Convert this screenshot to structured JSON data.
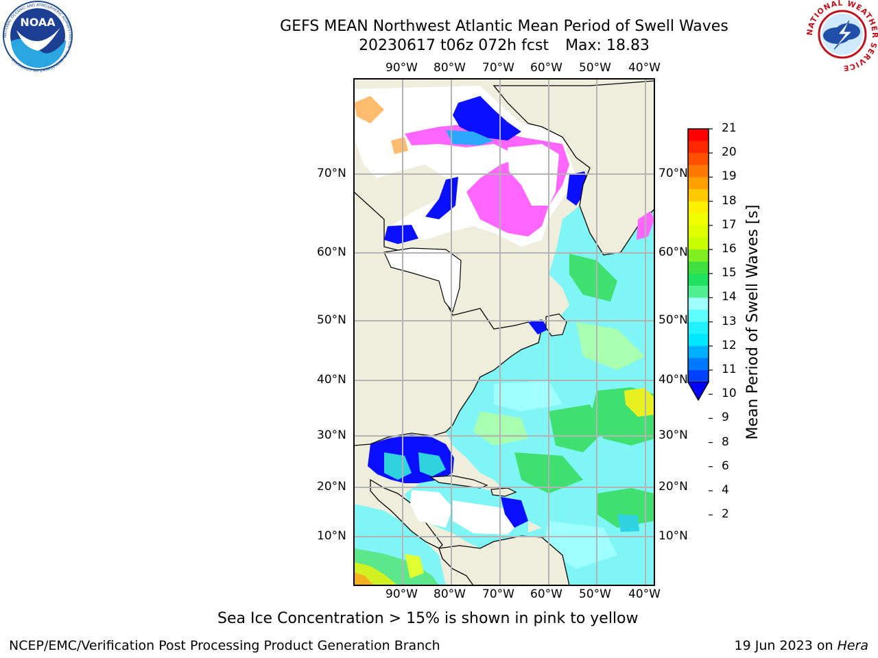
{
  "title": {
    "line1": "GEFS MEAN Northwest Atlantic Mean Period of Swell Waves",
    "line2_date": "20230617 t06z 072h fcst",
    "line2_max": "Max: 18.83"
  },
  "lon_ticks": [
    "90°W",
    "80°W",
    "70°W",
    "60°W",
    "50°W",
    "40°W"
  ],
  "lat_ticks": [
    "70°N",
    "60°N",
    "50°N",
    "40°N",
    "30°N",
    "20°N",
    "10°N"
  ],
  "colorbar": {
    "label": "Mean Period of Swell Waves [s]",
    "ticks": [
      "21",
      "20",
      "19",
      "18",
      "17",
      "16",
      "15",
      "14",
      "13",
      "12",
      "11",
      "10",
      "9",
      "8",
      "6",
      "4",
      "2"
    ],
    "colors": [
      "#ff0000",
      "#ff2800",
      "#ff5000",
      "#ff7800",
      "#ffa000",
      "#ffc800",
      "#fff000",
      "#f0ff00",
      "#e0ff00",
      "#c8ff00",
      "#80f020",
      "#40e040",
      "#20e060",
      "#50f090",
      "#a0ffff",
      "#60ffff",
      "#20f0ff",
      "#00e8ff",
      "#00b0ff",
      "#0078ff",
      "#0040ff"
    ],
    "extend_color": "#0000ff"
  },
  "note": "Sea Ice Concentration > 15% is shown in pink to yellow",
  "footer_left": "NCEP/EMC/Verification Post Processing Product Generation Branch",
  "footer_right_date": "19 Jun 2023 on ",
  "footer_right_host": "Hera",
  "logos": {
    "noaa_text": "NOAA",
    "noaa_ring_text": "NATIONAL OCEANIC AND ATMOSPHERIC ADMINISTRATION · U.S. DEPARTMENT OF COMMERCE",
    "nws_ring_text": "NATIONAL WEATHER SERVICE"
  }
}
